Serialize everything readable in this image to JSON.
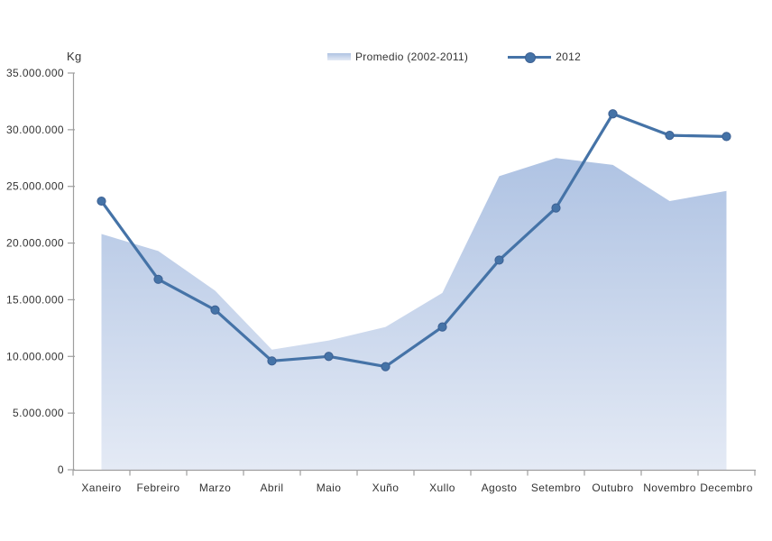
{
  "chart_data": {
    "type": "combo-area-line",
    "title": "",
    "categories": [
      "Xaneiro",
      "Febreiro",
      "Marzo",
      "Abril",
      "Maio",
      "Xuño",
      "Xullo",
      "Agosto",
      "Setembro",
      "Outubro",
      "Novembro",
      "Decembro"
    ],
    "y_axis": {
      "label": "Kg",
      "min": 0,
      "max": 35000000,
      "tick_step": 5000000,
      "tick_labels": [
        "0",
        "5.000.000",
        "10.000.000",
        "15.000.000",
        "20.000.000",
        "25.000.000",
        "30.000.000",
        "35.000.000"
      ]
    },
    "x_axis": {
      "label": ""
    },
    "grid": false,
    "legend_position": "top",
    "series": [
      {
        "name": "Promedio (2002-2011)",
        "type": "area",
        "values": [
          20800000,
          19300000,
          15800000,
          10600000,
          11400000,
          12600000,
          15600000,
          25900000,
          27500000,
          26900000,
          23700000,
          24600000
        ]
      },
      {
        "name": "2012",
        "type": "line",
        "values": [
          23700000,
          16800000,
          14100000,
          9600000,
          10000000,
          9100000,
          12600000,
          18500000,
          23100000,
          31400000,
          29500000,
          29400000
        ]
      }
    ],
    "colors": {
      "line": "#4573a7",
      "marker_stroke": "#3c6093",
      "area_top": "#afc3e3",
      "area_bottom": "#e4eaf5",
      "axis": "#9e9e9e",
      "text": "#333333"
    }
  }
}
